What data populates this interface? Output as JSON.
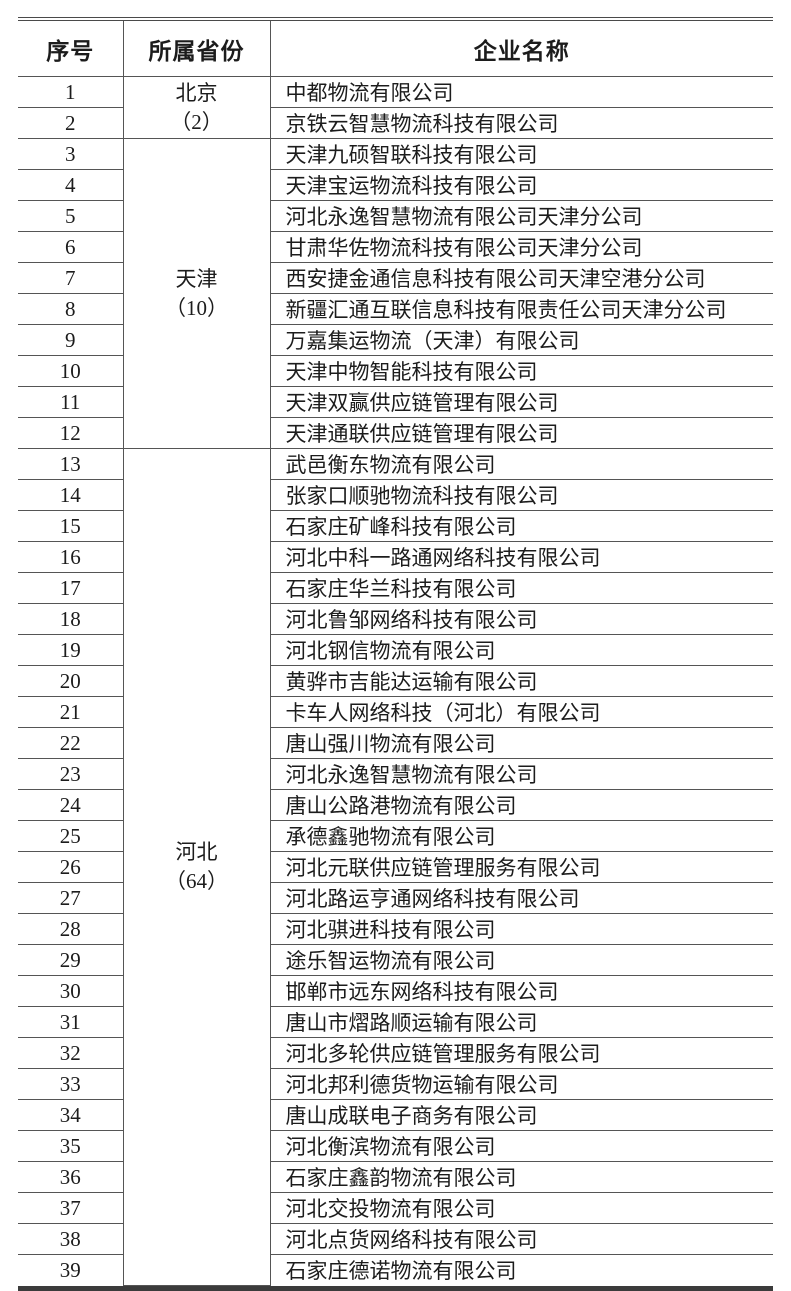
{
  "table": {
    "headers": {
      "no": "序号",
      "province": "所属省份",
      "company": "企业名称"
    },
    "groups": [
      {
        "province": "北京",
        "count": "（2）",
        "companies": [
          {
            "no": "1",
            "name": "中都物流有限公司"
          },
          {
            "no": "2",
            "name": "京铁云智慧物流科技有限公司"
          }
        ]
      },
      {
        "province": "天津",
        "count": "（10）",
        "companies": [
          {
            "no": "3",
            "name": "天津九硕智联科技有限公司"
          },
          {
            "no": "4",
            "name": "天津宝运物流科技有限公司"
          },
          {
            "no": "5",
            "name": "河北永逸智慧物流有限公司天津分公司"
          },
          {
            "no": "6",
            "name": "甘肃华佐物流科技有限公司天津分公司"
          },
          {
            "no": "7",
            "name": "西安捷金通信息科技有限公司天津空港分公司"
          },
          {
            "no": "8",
            "name": "新疆汇通互联信息科技有限责任公司天津分公司"
          },
          {
            "no": "9",
            "name": "万嘉集运物流（天津）有限公司"
          },
          {
            "no": "10",
            "name": "天津中物智能科技有限公司"
          },
          {
            "no": "11",
            "name": "天津双赢供应链管理有限公司"
          },
          {
            "no": "12",
            "name": "天津通联供应链管理有限公司"
          }
        ]
      },
      {
        "province": "河北",
        "count": "（64）",
        "companies": [
          {
            "no": "13",
            "name": "武邑衡东物流有限公司"
          },
          {
            "no": "14",
            "name": "张家口顺驰物流科技有限公司"
          },
          {
            "no": "15",
            "name": "石家庄矿峰科技有限公司"
          },
          {
            "no": "16",
            "name": "河北中科一路通网络科技有限公司"
          },
          {
            "no": "17",
            "name": "石家庄华兰科技有限公司"
          },
          {
            "no": "18",
            "name": "河北鲁邹网络科技有限公司"
          },
          {
            "no": "19",
            "name": "河北钢信物流有限公司"
          },
          {
            "no": "20",
            "name": "黄骅市吉能达运输有限公司"
          },
          {
            "no": "21",
            "name": "卡车人网络科技（河北）有限公司"
          },
          {
            "no": "22",
            "name": "唐山强川物流有限公司"
          },
          {
            "no": "23",
            "name": "河北永逸智慧物流有限公司"
          },
          {
            "no": "24",
            "name": "唐山公路港物流有限公司"
          },
          {
            "no": "25",
            "name": "承德鑫驰物流有限公司"
          },
          {
            "no": "26",
            "name": "河北元联供应链管理服务有限公司"
          },
          {
            "no": "27",
            "name": "河北路运亨通网络科技有限公司"
          },
          {
            "no": "28",
            "name": "河北骐进科技有限公司"
          },
          {
            "no": "29",
            "name": "途乐智运物流有限公司"
          },
          {
            "no": "30",
            "name": "邯郸市远东网络科技有限公司"
          },
          {
            "no": "31",
            "name": "唐山市熠路顺运输有限公司"
          },
          {
            "no": "32",
            "name": "河北多轮供应链管理服务有限公司"
          },
          {
            "no": "33",
            "name": "河北邦利德货物运输有限公司"
          },
          {
            "no": "34",
            "name": "唐山成联电子商务有限公司"
          },
          {
            "no": "35",
            "name": "河北衡滨物流有限公司"
          },
          {
            "no": "36",
            "name": "石家庄鑫韵物流有限公司"
          },
          {
            "no": "37",
            "name": "河北交投物流有限公司"
          },
          {
            "no": "38",
            "name": "河北点货网络科技有限公司"
          },
          {
            "no": "39",
            "name": "石家庄德诺物流有限公司"
          }
        ]
      }
    ]
  }
}
